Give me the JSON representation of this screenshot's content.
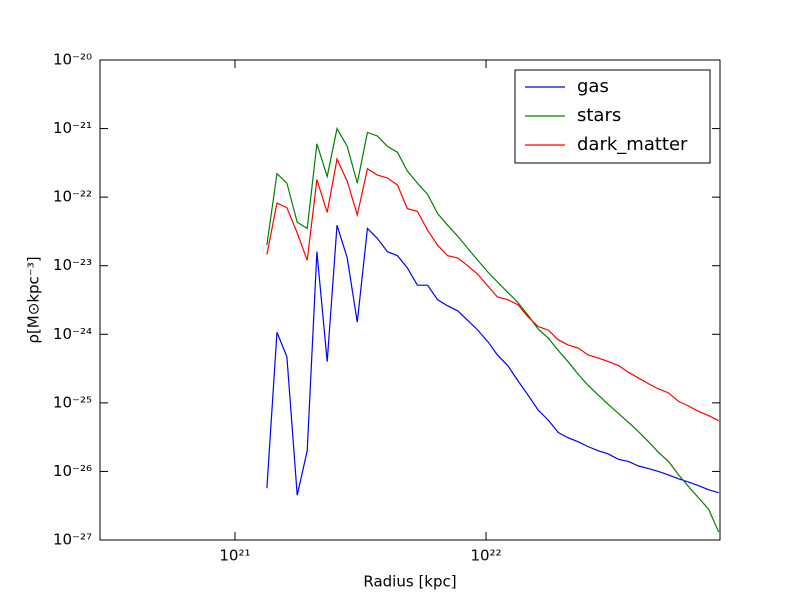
{
  "chart_data": {
    "type": "line",
    "xlabel": "Radius [kpc]",
    "ylabel": "ρ[M⊙kpc⁻³]",
    "xscale": "log",
    "yscale": "log",
    "xlim": [
      2.9e+20,
      8.55e+22
    ],
    "ylim": [
      1e-27,
      1e-20
    ],
    "xticks": [
      {
        "value": 1e+21,
        "label": "10²¹"
      },
      {
        "value": 1e+22,
        "label": "10²²"
      }
    ],
    "yticks": [
      {
        "value": 1e-27,
        "label": "10⁻²⁷"
      },
      {
        "value": 1e-26,
        "label": "10⁻²⁶"
      },
      {
        "value": 1e-25,
        "label": "10⁻²⁵"
      },
      {
        "value": 1e-24,
        "label": "10⁻²⁴"
      },
      {
        "value": 1e-23,
        "label": "10⁻²³"
      },
      {
        "value": 1e-22,
        "label": "10⁻²²"
      },
      {
        "value": 1e-21,
        "label": "10⁻²¹"
      },
      {
        "value": 1e-20,
        "label": "10⁻²⁰"
      }
    ],
    "grid": false,
    "legend": "upper right",
    "x": [
      1.34e+21,
      1.47e+21,
      1.61e+21,
      1.77e+21,
      1.94e+21,
      2.12e+21,
      2.33e+21,
      2.55e+21,
      2.8e+21,
      3.07e+21,
      3.37e+21,
      3.69e+21,
      4.05e+21,
      4.44e+21,
      4.86e+21,
      5.33e+21,
      5.85e+21,
      6.41e+21,
      7.03e+21,
      7.71e+21,
      8.45e+21,
      9.27e+21,
      1.02e+22,
      1.11e+22,
      1.22e+22,
      1.34e+22,
      1.47e+22,
      1.61e+22,
      1.77e+22,
      1.94e+22,
      2.12e+22,
      2.33e+22,
      2.55e+22,
      2.8e+22,
      3.07e+22,
      3.37e+22,
      3.69e+22,
      4.05e+22,
      4.44e+22,
      4.86e+22,
      5.33e+22,
      5.85e+22,
      6.41e+22,
      7.03e+22,
      7.71e+22,
      8.45e+22
    ],
    "series": [
      {
        "name": "gas",
        "color": "#0000ff",
        "values": [
          5.7e-27,
          1.07e-24,
          4.7e-25,
          4.5e-27,
          2e-26,
          1.6e-23,
          4e-25,
          3.9e-23,
          1.3e-23,
          1.5e-24,
          3.5e-23,
          2.5e-23,
          1.6e-23,
          1.4e-23,
          9.3e-24,
          5.2e-24,
          5.2e-24,
          3.2e-24,
          2.6e-24,
          2.2e-24,
          1.6e-24,
          1.15e-24,
          7.7e-25,
          5e-25,
          3.5e-25,
          2.1e-25,
          1.3e-25,
          7.9e-26,
          5.6e-26,
          3.7e-26,
          3.1e-26,
          2.7e-26,
          2.3e-26,
          2e-26,
          1.8e-26,
          1.5e-26,
          1.4e-26,
          1.2e-26,
          1.1e-26,
          1e-26,
          8.9e-27,
          7.8e-27,
          7e-27,
          6.2e-27,
          5.4e-27,
          4.9e-27
        ]
      },
      {
        "name": "stars",
        "color": "#008000",
        "values": [
          2e-23,
          2.2e-22,
          1.6e-22,
          4.3e-23,
          3.5e-23,
          6e-22,
          2e-22,
          1e-21,
          5.5e-22,
          1.6e-22,
          8.8e-22,
          7.8e-22,
          5.5e-22,
          4.5e-22,
          2.4e-22,
          1.6e-22,
          1.1e-22,
          5.8e-23,
          3.9e-23,
          2.7e-23,
          1.8e-23,
          1.2e-23,
          8e-24,
          5.8e-24,
          4.1e-24,
          2.9e-24,
          1.9e-24,
          1.2e-24,
          8.8e-25,
          5.8e-25,
          4e-25,
          2.6e-25,
          1.8e-25,
          1.3e-25,
          9.5e-26,
          7e-26,
          5.2e-26,
          3.8e-26,
          2.7e-26,
          1.9e-26,
          1.4e-26,
          8.9e-27,
          6e-27,
          4.1e-27,
          2.8e-27,
          1.3e-27
        ]
      },
      {
        "name": "dark_matter",
        "color": "#ff0000",
        "values": [
          1.45e-23,
          8.2e-23,
          7e-23,
          3e-23,
          1.2e-23,
          1.8e-22,
          6e-23,
          3.6e-22,
          1.7e-22,
          5.5e-23,
          2.6e-22,
          2.1e-22,
          1.9e-22,
          1.5e-22,
          6.8e-23,
          6.2e-23,
          3.3e-23,
          2e-23,
          1.4e-23,
          1.3e-23,
          1e-23,
          7.5e-24,
          5e-24,
          3.5e-24,
          3.2e-24,
          2.7e-24,
          1.8e-24,
          1.3e-24,
          1.15e-24,
          8.3e-25,
          7e-25,
          6.3e-25,
          5e-25,
          4.5e-25,
          4e-25,
          3.5e-25,
          2.8e-25,
          2.3e-25,
          1.9e-25,
          1.6e-25,
          1.4e-25,
          1.05e-25,
          9e-26,
          7.5e-26,
          6.5e-26,
          5.5e-26
        ]
      }
    ]
  }
}
